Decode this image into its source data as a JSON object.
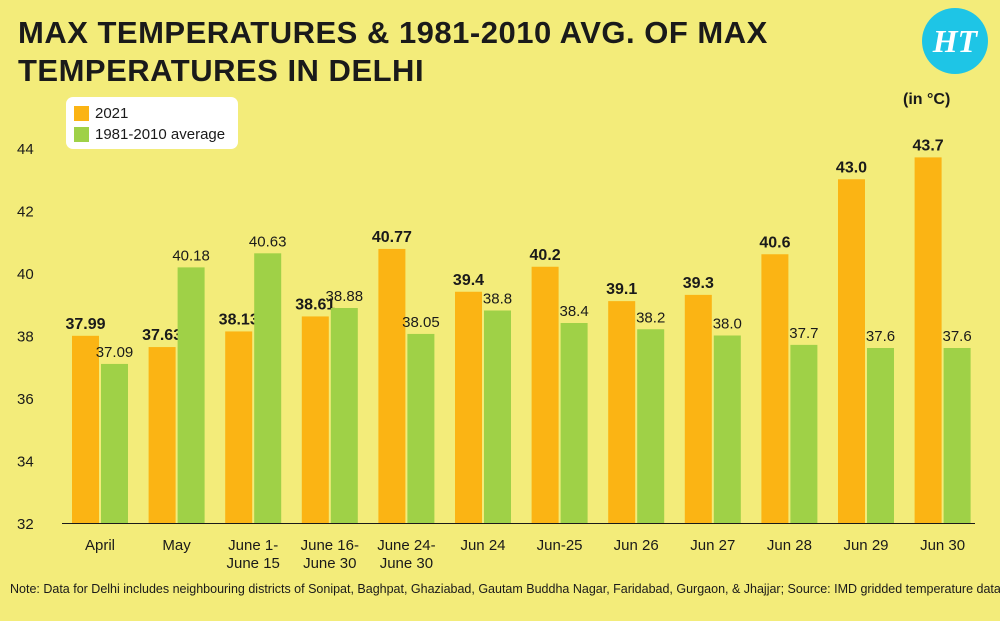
{
  "header": {
    "title": "MAX TEMPERATURES & 1981-2010 AVG. OF MAX TEMPERATURES IN DELHI",
    "logo_text": "HT",
    "unit": "(in °C)"
  },
  "note": "Note: Data for Delhi includes neighbouring districts of Sonipat, Baghpat, Ghaziabad, Gautam Buddha Nagar, Faridabad, Gurgaon, & Jhajjar; Source: IMD gridded temperature dataset",
  "colors": {
    "background": "#f3ec7a",
    "series_2021": "#fbb414",
    "series_avg": "#9fd147",
    "logo": "#1ec5e6"
  },
  "chart_data": {
    "type": "bar",
    "title": "MAX TEMPERATURES & 1981-2010 AVG. OF MAX TEMPERATURES IN DELHI",
    "ylabel": "",
    "xlabel": "",
    "unit": "(in °C)",
    "ylim": [
      32,
      44
    ],
    "yticks": [
      32,
      34,
      36,
      38,
      40,
      42,
      44
    ],
    "grid": false,
    "legend_position": "top-left",
    "categories": [
      [
        "April"
      ],
      [
        "May"
      ],
      [
        "June 1-",
        "June 15"
      ],
      [
        "June 16-",
        "June 30"
      ],
      [
        "June 24-",
        "June 30"
      ],
      [
        "Jun 24"
      ],
      [
        "Jun-25"
      ],
      [
        "Jun 26"
      ],
      [
        "Jun 27"
      ],
      [
        "Jun 28"
      ],
      [
        "Jun 29"
      ],
      [
        "Jun 30"
      ]
    ],
    "series": [
      {
        "name": "2021",
        "color": "#fbb414",
        "values": [
          37.99,
          37.63,
          38.13,
          38.61,
          40.77,
          39.4,
          40.2,
          39.1,
          39.3,
          40.6,
          43.0,
          43.7
        ],
        "labels": [
          "37.99",
          "37.63",
          "38.13",
          "38.61",
          "40.77",
          "39.4",
          "40.2",
          "39.1",
          "39.3",
          "40.6",
          "43.0",
          "43.7"
        ]
      },
      {
        "name": "1981-2010 average",
        "color": "#9fd147",
        "values": [
          37.09,
          40.18,
          40.63,
          38.88,
          38.05,
          38.8,
          38.4,
          38.2,
          38.0,
          37.7,
          37.6,
          37.6
        ],
        "labels": [
          "37.09",
          "40.18",
          "40.63",
          "38.88",
          "38.05",
          "38.8",
          "38.4",
          "38.2",
          "38.0",
          "37.7",
          "37.6",
          "37.6"
        ]
      }
    ]
  }
}
